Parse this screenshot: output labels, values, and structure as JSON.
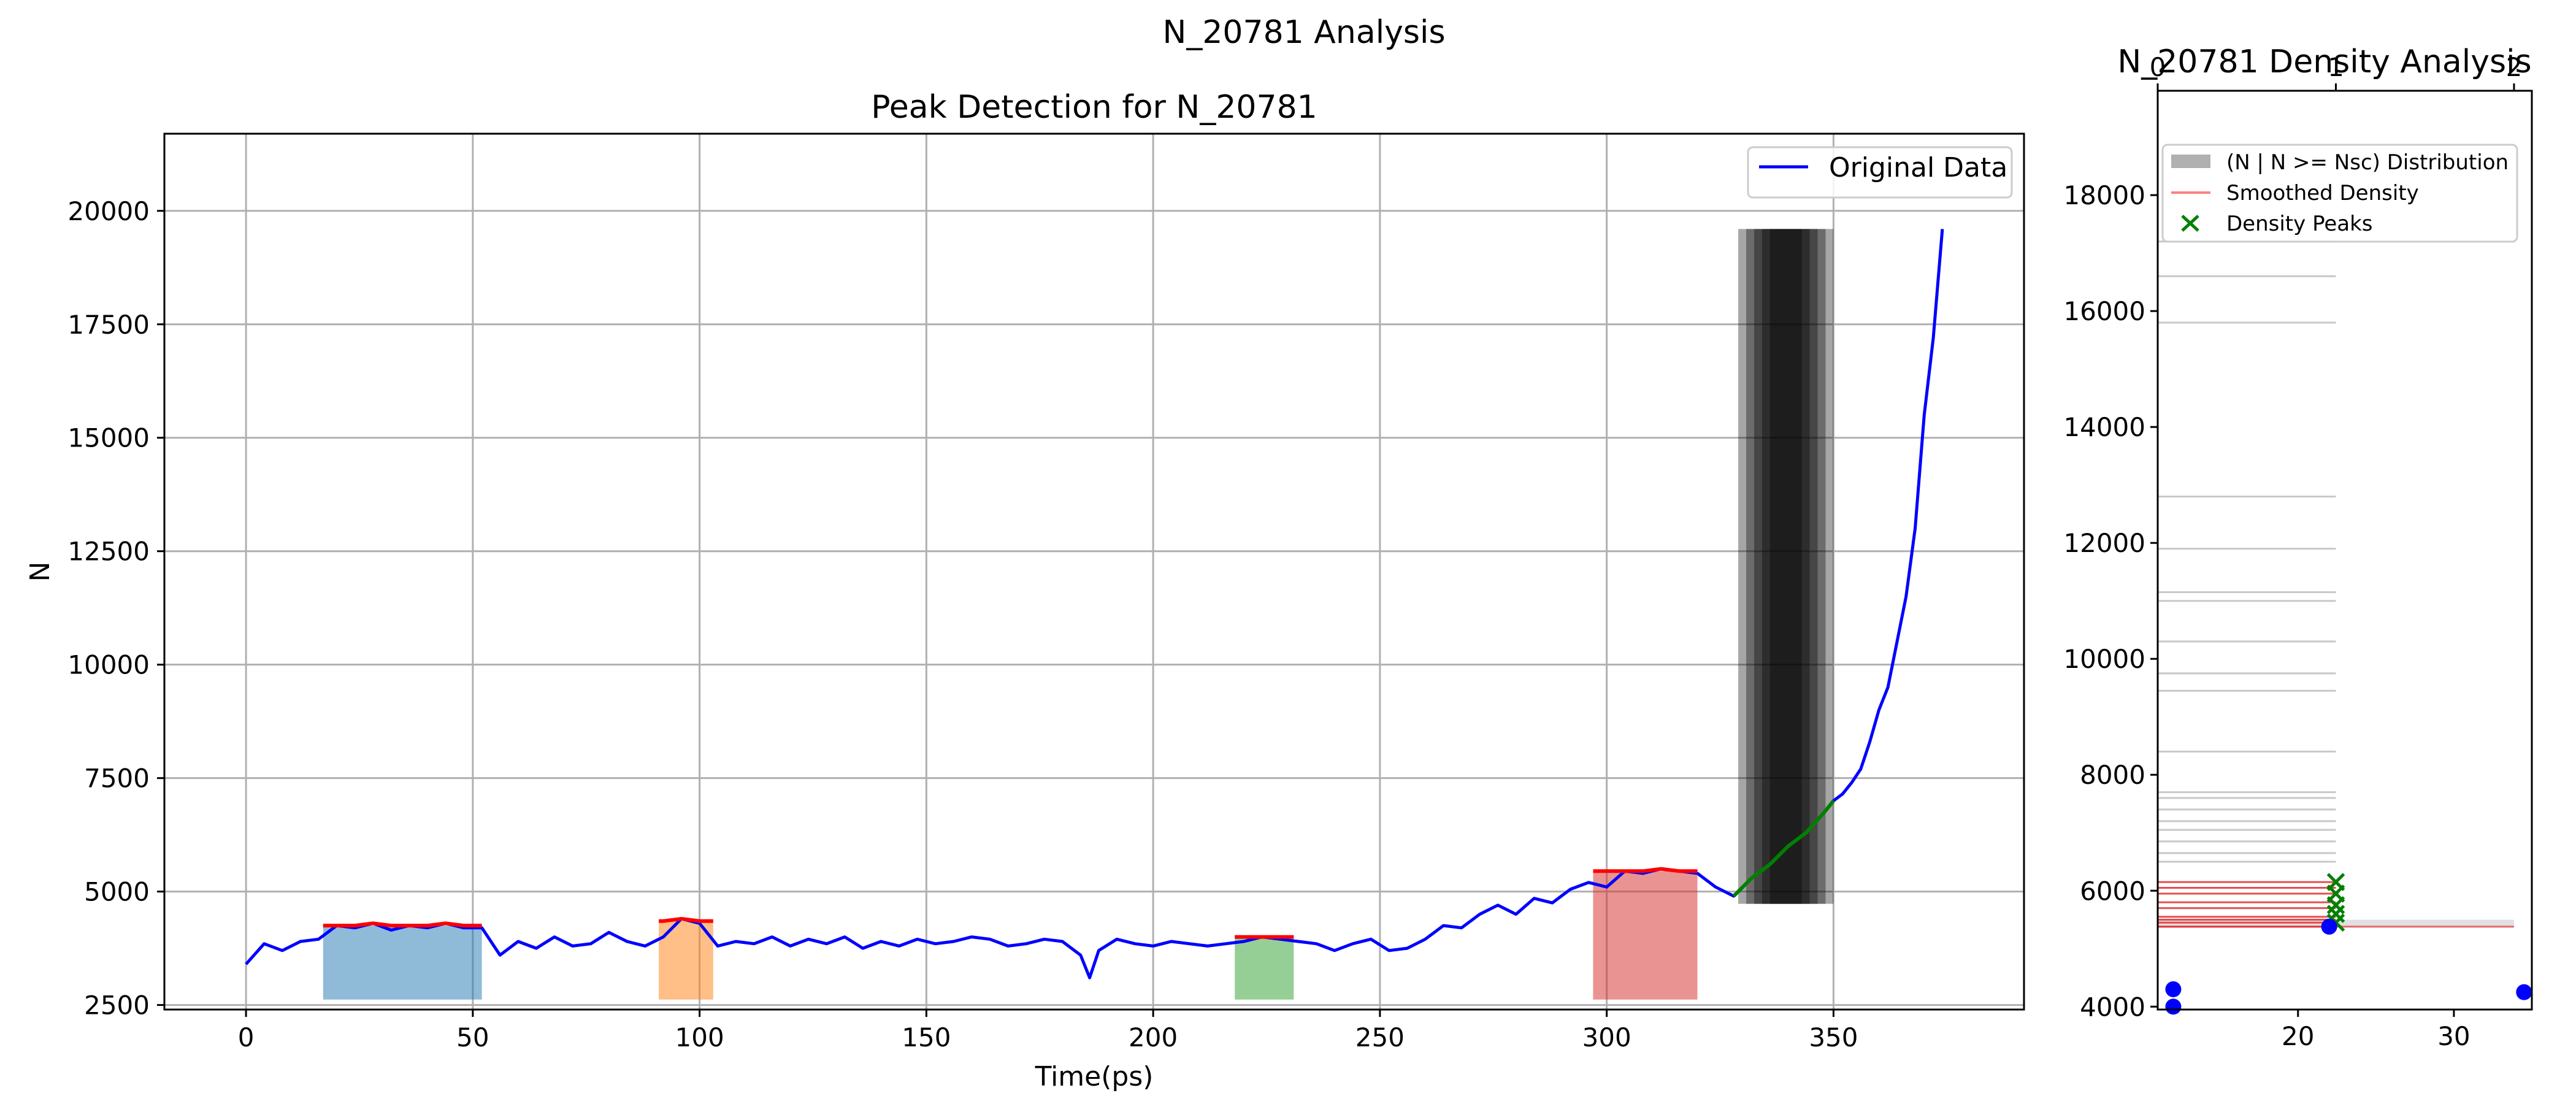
{
  "figure": {
    "suptitle": "N_20781 Analysis"
  },
  "chart_data": [
    {
      "type": "line",
      "title": "Peak Detection for N_20781",
      "xlabel": "Time(ps)",
      "ylabel": "N",
      "xlim": [
        -18,
        392
      ],
      "ylim": [
        2400,
        21700
      ],
      "xticks": [
        0,
        50,
        100,
        150,
        200,
        250,
        300,
        350
      ],
      "yticks": [
        2500,
        5000,
        7500,
        10000,
        12500,
        15000,
        17500,
        20000
      ],
      "grid": true,
      "legend": {
        "position": "top-right",
        "entries": [
          "Original Data"
        ]
      },
      "colors": {
        "original": "#0000ff",
        "peak": "#ff0000",
        "growth": "#008000",
        "nucleation_band": "#000000"
      },
      "series": [
        {
          "name": "Original Data",
          "x": [
            0,
            4,
            8,
            12,
            16,
            20,
            24,
            28,
            32,
            36,
            40,
            44,
            48,
            52,
            56,
            60,
            64,
            68,
            72,
            76,
            80,
            84,
            88,
            92,
            96,
            100,
            104,
            108,
            112,
            116,
            120,
            124,
            128,
            132,
            136,
            140,
            144,
            148,
            152,
            156,
            160,
            164,
            168,
            172,
            176,
            180,
            184,
            186,
            188,
            192,
            196,
            200,
            204,
            208,
            212,
            216,
            220,
            224,
            228,
            232,
            236,
            240,
            244,
            248,
            252,
            256,
            260,
            264,
            268,
            272,
            276,
            280,
            284,
            288,
            292,
            296,
            300,
            304,
            308,
            312,
            316,
            320,
            324,
            328,
            332,
            336,
            340,
            344,
            348,
            350,
            352,
            354,
            356,
            358,
            360,
            362,
            364,
            366,
            368,
            370,
            372,
            374
          ],
          "y": [
            3400,
            3850,
            3700,
            3900,
            3950,
            4250,
            4200,
            4300,
            4150,
            4250,
            4200,
            4300,
            4200,
            4200,
            3600,
            3900,
            3750,
            4000,
            3800,
            3850,
            4100,
            3900,
            3800,
            4000,
            4400,
            4300,
            3800,
            3900,
            3850,
            4000,
            3800,
            3950,
            3850,
            4000,
            3750,
            3900,
            3800,
            3950,
            3850,
            3900,
            4000,
            3950,
            3800,
            3850,
            3950,
            3900,
            3600,
            3100,
            3700,
            3950,
            3850,
            3800,
            3900,
            3850,
            3800,
            3850,
            3900,
            4000,
            3950,
            3900,
            3850,
            3700,
            3850,
            3950,
            3700,
            3750,
            3950,
            4250,
            4200,
            4500,
            4700,
            4500,
            4850,
            4750,
            5050,
            5200,
            5100,
            5450,
            5400,
            5500,
            5450,
            5400,
            5100,
            4900,
            5300,
            5600,
            6000,
            6300,
            6750,
            7000,
            7150,
            7400,
            7700,
            8300,
            9000,
            9500,
            10500,
            11500,
            13000,
            15500,
            17200,
            19600
          ]
        },
        {
          "name": "",
          "role": "growth",
          "x": [
            328,
            332,
            336,
            340,
            344,
            348,
            350
          ],
          "y": [
            4900,
            5300,
            5600,
            6000,
            6300,
            6750,
            7000
          ]
        }
      ],
      "peak_regions": [
        {
          "x0": 17,
          "x1": 52,
          "fill": "#1f77b4",
          "plateau": 4250
        },
        {
          "x0": 91,
          "x1": 103,
          "fill": "#ff7f0e",
          "plateau": 4350
        },
        {
          "x0": 218,
          "x1": 231,
          "fill": "#2ca02c",
          "plateau": 4000
        },
        {
          "x0": 297,
          "x1": 320,
          "fill": "#d62728",
          "plateau": 5450
        }
      ],
      "nucleation_band": {
        "x0": 329,
        "x1": 350,
        "ytop": 19600
      }
    },
    {
      "type": "scatter",
      "title": "N_20781 Density Analysis",
      "ylim": [
        3950,
        19800
      ],
      "yticks": [
        4000,
        6000,
        8000,
        10000,
        12000,
        14000,
        16000,
        18000
      ],
      "top_axis": {
        "lim": [
          0,
          2.1
        ],
        "ticks": [
          0,
          1,
          2
        ]
      },
      "bottom_axis": {
        "lim": [
          11,
          35
        ],
        "ticks": [
          20,
          30
        ]
      },
      "legend": {
        "position": "top-left",
        "entries": [
          "(N | N >= Nsc) Distribution",
          "Smoothed Density",
          "Density Peaks"
        ]
      },
      "distribution": {
        "N": [
          17200,
          16600,
          15800,
          12800,
          11900,
          11150,
          11000,
          10300,
          9750,
          9450,
          8400,
          7700,
          7600,
          7400,
          7200,
          7050,
          6850,
          6650,
          6500
        ],
        "count": [
          1,
          1,
          1,
          1,
          1,
          1,
          1,
          1,
          1,
          1,
          1,
          1,
          1,
          1,
          1,
          1,
          1,
          1,
          1
        ]
      },
      "high_density_lines": [
        6150,
        6050,
        5950,
        5800,
        5700,
        5550,
        5500,
        5450,
        5380
      ],
      "density_peaks": [
        {
          "x": 1,
          "N": 6150
        },
        {
          "x": 1,
          "N": 5950
        },
        {
          "x": 1,
          "N": 5750
        },
        {
          "x": 1,
          "N": 5600
        },
        {
          "x": 1,
          "N": 5450
        }
      ],
      "cluster_points": [
        {
          "x": 12,
          "N": 4300
        },
        {
          "x": 12,
          "N": 4000
        },
        {
          "x": 22,
          "N": 5380
        },
        {
          "x": 34.5,
          "N": 4250
        }
      ]
    }
  ]
}
